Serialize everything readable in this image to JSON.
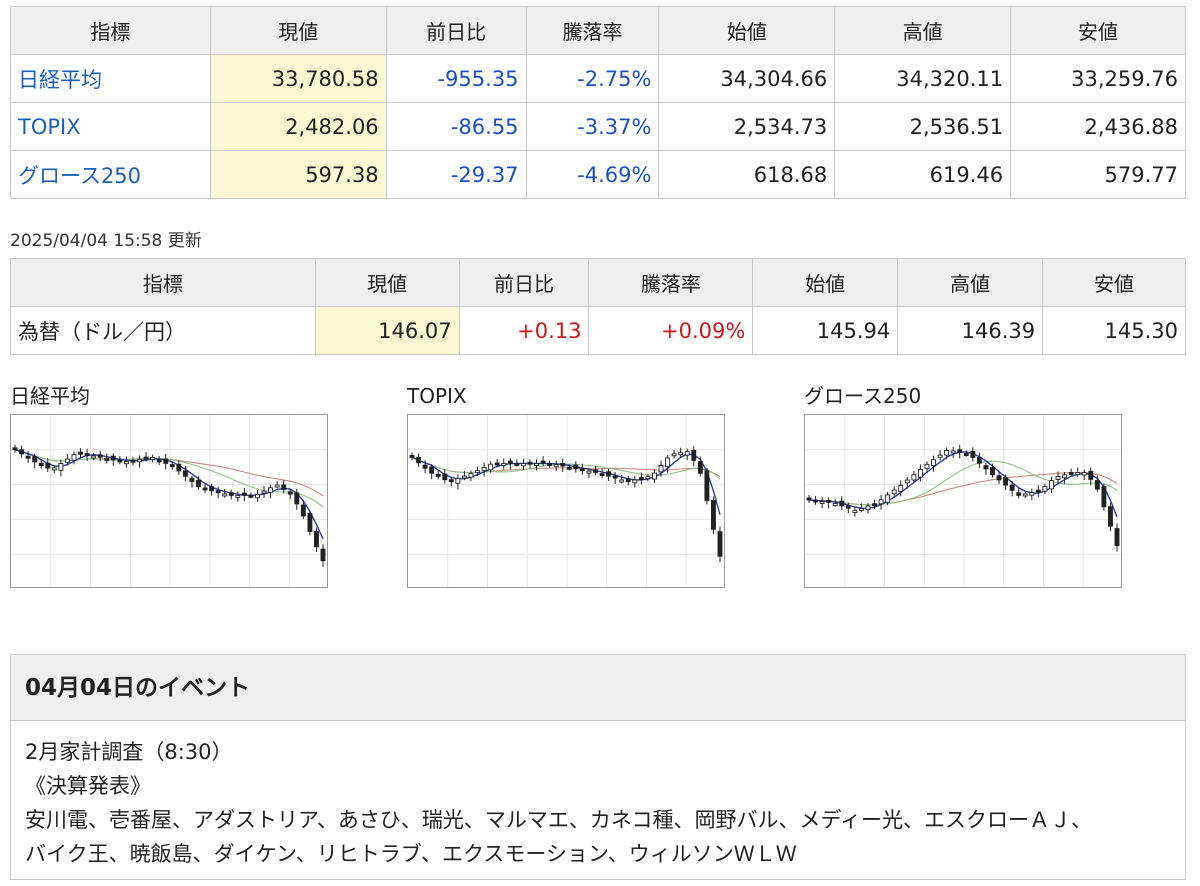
{
  "index_table": {
    "headers": [
      "指標",
      "現値",
      "前日比",
      "騰落率",
      "始値",
      "高値",
      "安値"
    ],
    "rows": [
      {
        "name": "日経平均",
        "current": "33,780.58",
        "change": "-955.35",
        "rate": "-2.75%",
        "open": "34,304.66",
        "high": "34,320.11",
        "low": "33,259.76",
        "direction": "down"
      },
      {
        "name": "TOPIX",
        "current": "2,482.06",
        "change": "-86.55",
        "rate": "-3.37%",
        "open": "2,534.73",
        "high": "2,536.51",
        "low": "2,436.88",
        "direction": "down"
      },
      {
        "name": "グロース250",
        "current": "597.38",
        "change": "-29.37",
        "rate": "-4.69%",
        "open": "618.68",
        "high": "619.46",
        "low": "579.77",
        "direction": "down"
      }
    ]
  },
  "updated_text": "2025/04/04 15:58 更新",
  "fx_table": {
    "headers": [
      "指標",
      "現値",
      "前日比",
      "騰落率",
      "始値",
      "高値",
      "安値"
    ],
    "rows": [
      {
        "name": "為替（ドル／円）",
        "current": "146.07",
        "change": "+0.13",
        "rate": "+0.09%",
        "open": "145.94",
        "high": "146.39",
        "low": "145.30",
        "direction": "up"
      }
    ]
  },
  "charts": [
    {
      "title": "日経平均"
    },
    {
      "title": "TOPIX"
    },
    {
      "title": "グロース250"
    }
  ],
  "events": {
    "heading": "04月04日のイベント",
    "lines": [
      "2月家計調査（8:30）",
      "《決算発表》",
      "安川電、壱番屋、アダストリア、あさひ、瑞光、マルマエ、カネコ種、岡野バル、メディー光、エスクローＡＪ、",
      "バイク王、暁飯島、ダイケン、リヒトラブ、エクスモーション、ウィルソンＷＬＷ"
    ]
  },
  "colors": {
    "negative": "#1a4fc4",
    "positive": "#d0161b",
    "current_cell_bg": "#fbf7d3",
    "header_bg": "#efefef",
    "link": "#1a5fb4"
  }
}
